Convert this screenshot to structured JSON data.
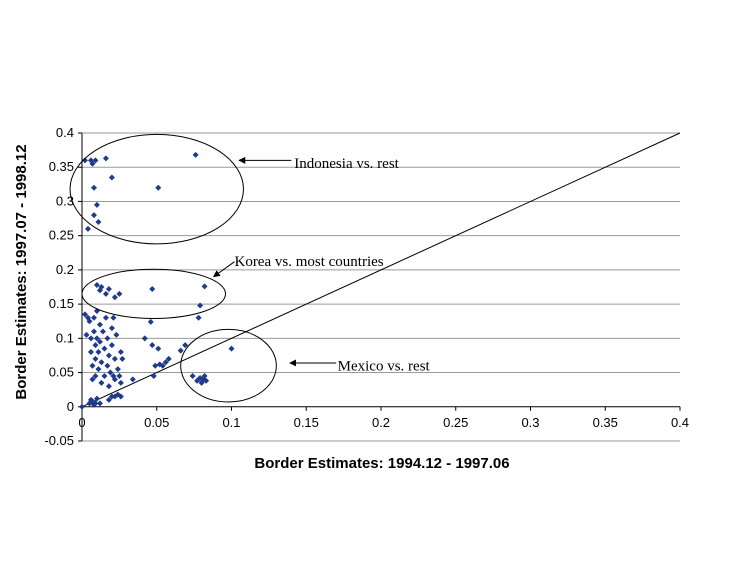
{
  "chart_data": {
    "type": "scatter",
    "title": "",
    "xlabel": "Border Estimates: 1994.12 - 1997.06",
    "ylabel": "Border Estimates: 1997.07 - 1998.12",
    "xlim": [
      0,
      0.4
    ],
    "ylim": [
      -0.05,
      0.4
    ],
    "x_ticks": [
      0,
      0.05,
      0.1,
      0.15,
      0.2,
      0.25,
      0.3,
      0.35,
      0.4
    ],
    "x_tick_labels": [
      "0",
      "0.05",
      "0.1",
      "0.15",
      "0.2",
      "0.25",
      "0.3",
      "0.35",
      "0.4"
    ],
    "y_ticks": [
      -0.05,
      0,
      0.05,
      0.1,
      0.15,
      0.2,
      0.25,
      0.3,
      0.35,
      0.4
    ],
    "y_tick_labels": [
      "-0.05",
      "0",
      "0.05",
      "0.1",
      "0.15",
      "0.2",
      "0.25",
      "0.3",
      "0.35",
      "0.4"
    ],
    "grid": "horizontal",
    "reference_line": {
      "from": [
        0,
        0
      ],
      "to": [
        0.4,
        0.4
      ]
    },
    "marker_color": "#1f3b8c",
    "series": [
      {
        "points": [
          [
            0.0,
            0.0
          ],
          [
            0.002,
            0.36
          ],
          [
            0.004,
            0.26
          ],
          [
            0.006,
            0.36
          ],
          [
            0.007,
            0.355
          ],
          [
            0.008,
            0.32
          ],
          [
            0.008,
            0.28
          ],
          [
            0.009,
            0.36
          ],
          [
            0.01,
            0.295
          ],
          [
            0.011,
            0.27
          ],
          [
            0.016,
            0.363
          ],
          [
            0.02,
            0.335
          ],
          [
            0.051,
            0.32
          ],
          [
            0.076,
            0.368
          ],
          [
            0.01,
            0.178
          ],
          [
            0.012,
            0.17
          ],
          [
            0.013,
            0.175
          ],
          [
            0.016,
            0.165
          ],
          [
            0.018,
            0.172
          ],
          [
            0.022,
            0.16
          ],
          [
            0.025,
            0.165
          ],
          [
            0.047,
            0.172
          ],
          [
            0.078,
            0.13
          ],
          [
            0.079,
            0.148
          ],
          [
            0.082,
            0.176
          ],
          [
            0.002,
            0.135
          ],
          [
            0.003,
            0.105
          ],
          [
            0.004,
            0.13
          ],
          [
            0.005,
            0.125
          ],
          [
            0.006,
            0.1
          ],
          [
            0.006,
            0.08
          ],
          [
            0.007,
            0.06
          ],
          [
            0.007,
            0.04
          ],
          [
            0.008,
            0.13
          ],
          [
            0.008,
            0.11
          ],
          [
            0.009,
            0.09
          ],
          [
            0.009,
            0.07
          ],
          [
            0.009,
            0.045
          ],
          [
            0.01,
            0.14
          ],
          [
            0.01,
            0.1
          ],
          [
            0.011,
            0.08
          ],
          [
            0.011,
            0.055
          ],
          [
            0.012,
            0.12
          ],
          [
            0.012,
            0.095
          ],
          [
            0.013,
            0.035
          ],
          [
            0.013,
            0.065
          ],
          [
            0.014,
            0.11
          ],
          [
            0.015,
            0.085
          ],
          [
            0.015,
            0.045
          ],
          [
            0.016,
            0.13
          ],
          [
            0.017,
            0.1
          ],
          [
            0.017,
            0.06
          ],
          [
            0.018,
            0.075
          ],
          [
            0.018,
            0.03
          ],
          [
            0.019,
            0.05
          ],
          [
            0.02,
            0.115
          ],
          [
            0.02,
            0.09
          ],
          [
            0.021,
            0.13
          ],
          [
            0.021,
            0.045
          ],
          [
            0.022,
            0.07
          ],
          [
            0.022,
            0.04
          ],
          [
            0.023,
            0.105
          ],
          [
            0.024,
            0.055
          ],
          [
            0.025,
            0.045
          ],
          [
            0.026,
            0.08
          ],
          [
            0.026,
            0.035
          ],
          [
            0.027,
            0.07
          ],
          [
            0.005,
            0.005
          ],
          [
            0.006,
            0.01
          ],
          [
            0.007,
            0.008
          ],
          [
            0.008,
            0.003
          ],
          [
            0.009,
            0.005
          ],
          [
            0.01,
            0.012
          ],
          [
            0.012,
            0.005
          ],
          [
            0.018,
            0.01
          ],
          [
            0.02,
            0.015
          ],
          [
            0.022,
            0.015
          ],
          [
            0.024,
            0.018
          ],
          [
            0.026,
            0.015
          ],
          [
            0.034,
            0.04
          ],
          [
            0.042,
            0.1
          ],
          [
            0.046,
            0.124
          ],
          [
            0.047,
            0.09
          ],
          [
            0.048,
            0.045
          ],
          [
            0.049,
            0.06
          ],
          [
            0.051,
            0.085
          ],
          [
            0.052,
            0.062
          ],
          [
            0.054,
            0.06
          ],
          [
            0.056,
            0.065
          ],
          [
            0.058,
            0.07
          ],
          [
            0.066,
            0.082
          ],
          [
            0.069,
            0.09
          ],
          [
            0.074,
            0.045
          ],
          [
            0.077,
            0.038
          ],
          [
            0.078,
            0.04
          ],
          [
            0.079,
            0.042
          ],
          [
            0.08,
            0.035
          ],
          [
            0.081,
            0.04
          ],
          [
            0.082,
            0.045
          ],
          [
            0.083,
            0.038
          ],
          [
            0.1,
            0.085
          ]
        ]
      }
    ],
    "annotations": [
      {
        "text": "Indonesia vs. rest",
        "ellipse": {
          "cx": 0.05,
          "cy": 0.318,
          "rx": 0.058,
          "ry": 0.08
        },
        "label_at": [
          0.142,
          0.356
        ],
        "arrow_from": [
          0.14,
          0.36
        ],
        "arrow_to": [
          0.105,
          0.36
        ]
      },
      {
        "text": "Korea vs. most countries",
        "ellipse": {
          "cx": 0.048,
          "cy": 0.165,
          "rx": 0.048,
          "ry": 0.036
        },
        "label_at": [
          0.102,
          0.213
        ],
        "arrow_from": [
          0.102,
          0.212
        ],
        "arrow_to": [
          0.088,
          0.19
        ]
      },
      {
        "text": "Mexico vs. rest",
        "ellipse": {
          "cx": 0.098,
          "cy": 0.06,
          "rx": 0.032,
          "ry": 0.053
        },
        "label_at": [
          0.171,
          0.06
        ],
        "arrow_from": [
          0.17,
          0.064
        ],
        "arrow_to": [
          0.139,
          0.064
        ]
      }
    ]
  }
}
